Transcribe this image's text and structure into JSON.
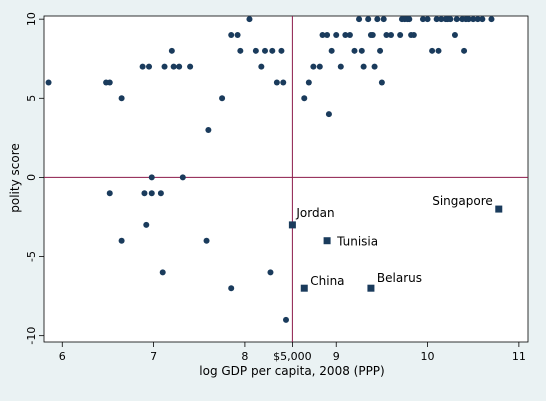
{
  "chart_data": {
    "type": "scatter",
    "xlabel": "log GDP per capita, 2008 (PPP)",
    "ylabel": "polity score",
    "xlim": [
      5.8,
      11.1
    ],
    "ylim": [
      -10.4,
      10.2
    ],
    "x_ticks": [
      6,
      7,
      8,
      9,
      10,
      11
    ],
    "y_ticks": [
      -10,
      -5,
      0,
      5,
      10
    ],
    "reference_lines": {
      "x": 8.52,
      "y": 0,
      "x_label": "$5,000",
      "color": "#8b1a4a"
    },
    "grid": false,
    "legend": "none",
    "marker_color": "#1a3b5c",
    "points": [
      [
        5.85,
        6
      ],
      [
        6.48,
        6
      ],
      [
        6.52,
        6
      ],
      [
        6.52,
        -1
      ],
      [
        6.65,
        5
      ],
      [
        6.65,
        -4
      ],
      [
        6.88,
        7
      ],
      [
        6.9,
        -1
      ],
      [
        6.92,
        -3
      ],
      [
        6.95,
        7
      ],
      [
        6.98,
        0
      ],
      [
        6.98,
        -1
      ],
      [
        7.08,
        -1
      ],
      [
        7.1,
        -6
      ],
      [
        7.12,
        7
      ],
      [
        7.2,
        8
      ],
      [
        7.22,
        7
      ],
      [
        7.28,
        7
      ],
      [
        7.32,
        0
      ],
      [
        7.4,
        7
      ],
      [
        7.58,
        -4
      ],
      [
        7.6,
        3
      ],
      [
        7.75,
        5
      ],
      [
        7.85,
        9
      ],
      [
        7.85,
        -7
      ],
      [
        7.92,
        9
      ],
      [
        7.95,
        8
      ],
      [
        8.05,
        10
      ],
      [
        8.12,
        8
      ],
      [
        8.18,
        7
      ],
      [
        8.22,
        8
      ],
      [
        8.28,
        -6
      ],
      [
        8.3,
        8
      ],
      [
        8.35,
        6
      ],
      [
        8.4,
        8
      ],
      [
        8.42,
        6
      ],
      [
        8.45,
        -9
      ],
      [
        8.65,
        5
      ],
      [
        8.7,
        6
      ],
      [
        8.75,
        7
      ],
      [
        8.82,
        7
      ],
      [
        8.85,
        9
      ],
      [
        8.9,
        9
      ],
      [
        8.92,
        4
      ],
      [
        8.95,
        8
      ],
      [
        9.0,
        9
      ],
      [
        9.05,
        7
      ],
      [
        9.1,
        9
      ],
      [
        9.15,
        9
      ],
      [
        9.2,
        8
      ],
      [
        9.25,
        10
      ],
      [
        9.28,
        8
      ],
      [
        9.3,
        7
      ],
      [
        9.35,
        10
      ],
      [
        9.38,
        9
      ],
      [
        9.4,
        9
      ],
      [
        9.42,
        7
      ],
      [
        9.45,
        10
      ],
      [
        9.48,
        8
      ],
      [
        9.5,
        6
      ],
      [
        9.52,
        10
      ],
      [
        9.55,
        9
      ],
      [
        9.6,
        9
      ],
      [
        9.7,
        9
      ],
      [
        9.72,
        10
      ],
      [
        9.75,
        10
      ],
      [
        9.78,
        10
      ],
      [
        9.8,
        10
      ],
      [
        9.82,
        9
      ],
      [
        9.85,
        9
      ],
      [
        9.95,
        10
      ],
      [
        10.0,
        10
      ],
      [
        10.05,
        8
      ],
      [
        10.1,
        10
      ],
      [
        10.12,
        8
      ],
      [
        10.15,
        10
      ],
      [
        10.2,
        10
      ],
      [
        10.22,
        10
      ],
      [
        10.25,
        10
      ],
      [
        10.3,
        9
      ],
      [
        10.32,
        10
      ],
      [
        10.38,
        10
      ],
      [
        10.4,
        8
      ],
      [
        10.42,
        10
      ],
      [
        10.45,
        10
      ],
      [
        10.5,
        10
      ],
      [
        10.55,
        10
      ],
      [
        10.6,
        10
      ],
      [
        10.7,
        10
      ]
    ],
    "labeled_points": [
      {
        "name": "Jordan",
        "x": 8.52,
        "y": -3
      },
      {
        "name": "Tunisia",
        "x": 8.9,
        "y": -4
      },
      {
        "name": "China",
        "x": 8.65,
        "y": -7
      },
      {
        "name": "Belarus",
        "x": 9.38,
        "y": -7
      },
      {
        "name": "Singapore",
        "x": 10.78,
        "y": -2
      }
    ]
  }
}
